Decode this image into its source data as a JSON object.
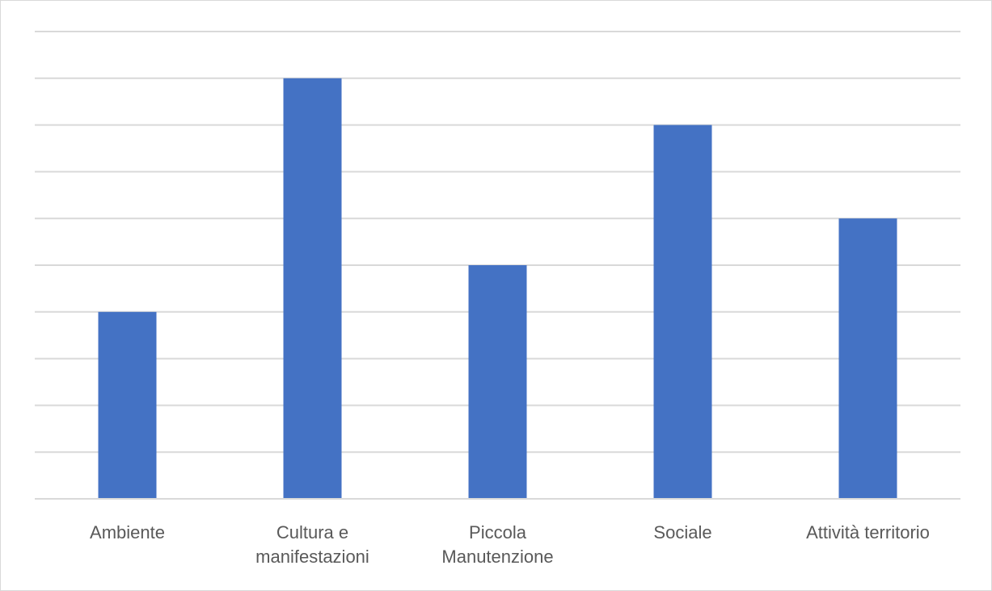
{
  "chart_data": {
    "type": "bar",
    "title": "",
    "xlabel": "",
    "ylabel": "",
    "categories": [
      [
        "Ambiente"
      ],
      [
        "Cultura e",
        "manifestazioni"
      ],
      [
        "Piccola",
        "Manutenzione"
      ],
      [
        "Sociale"
      ],
      [
        "Attività territorio"
      ]
    ],
    "values": [
      4,
      9,
      5,
      8,
      6
    ],
    "ylim": [
      0,
      10
    ],
    "grid": true,
    "legend": "none",
    "y_tick_labels_shown": false,
    "bar_color": "#4472c4",
    "grid_color": "#d9d9d9",
    "label_color": "#595959"
  }
}
